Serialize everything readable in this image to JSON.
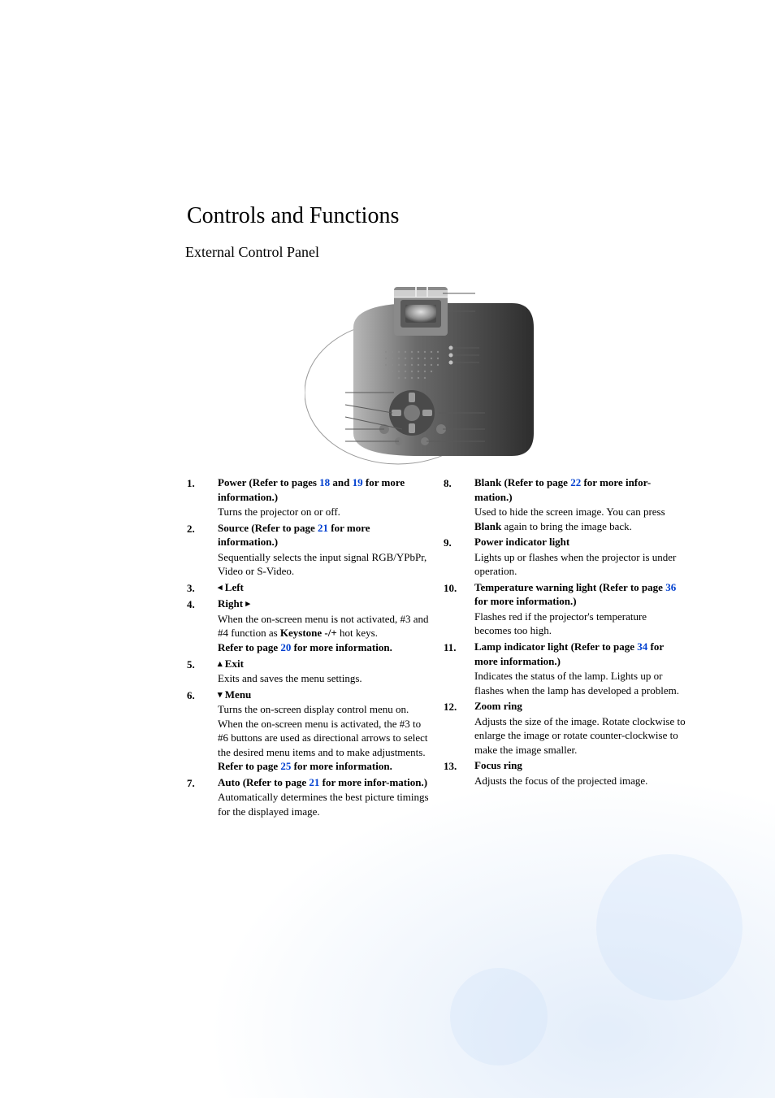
{
  "title": "Controls and Functions",
  "subtitle": "External Control Panel",
  "link_color": "#0040d0",
  "diagram": {
    "body_fill_start": "#b8b8b8",
    "body_fill_end": "#2d2d2d",
    "lens_fill": "#a8a8a8",
    "panel_dot": "#8a8a8a",
    "callout_stroke": "#5a5a5a",
    "outline_stroke": "#9a9a9a"
  },
  "left": [
    {
      "n": "1.",
      "head": [
        "Power (Refer to pages ",
        {
          "link": "18"
        },
        " and ",
        {
          "link": "19"
        },
        " for more information.)"
      ],
      "desc": [
        "Turns the projector on or off."
      ]
    },
    {
      "n": "2.",
      "head": [
        "Source (Refer to page ",
        {
          "link": "21"
        },
        " for more information.)"
      ],
      "desc": [
        "Sequentially selects the input signal RGB/YPbPr, Video or S-Video."
      ]
    },
    {
      "n": "3.",
      "head": [
        {
          "arrow": "◂"
        },
        " Left"
      ],
      "desc": []
    },
    {
      "n": "4.",
      "head": [
        "Right ",
        {
          "arrow": "▸"
        }
      ],
      "desc": [
        "When the on-screen menu is not activated, #3 and #4 function as ",
        {
          "bold": "Keystone -/+"
        },
        " hot keys.",
        {
          "br": true
        },
        {
          "bold": "Refer to page "
        },
        {
          "boldlink": "20"
        },
        {
          "bold": " for more information."
        }
      ]
    },
    {
      "n": "5.",
      "head": [
        {
          "arrow": "▴"
        },
        " Exit"
      ],
      "desc": [
        "Exits and saves the menu settings."
      ]
    },
    {
      "n": "6.",
      "head": [
        {
          "arrow": "▾"
        },
        " Menu"
      ],
      "desc": [
        "Turns the on-screen display control menu on.",
        {
          "br": true
        },
        "When the on-screen menu is activated, the #3 to #6 buttons are used as directional arrows to select the desired menu items and to make adjustments. ",
        {
          "bold": "Refer to page "
        },
        {
          "boldlink": "25"
        },
        {
          "bold": " for more information."
        }
      ]
    },
    {
      "n": "7.",
      "head": [
        "Auto (Refer to page ",
        {
          "link": "21"
        },
        " for more infor-mation.)"
      ],
      "desc": [
        "Automatically determines the best picture timings for the displayed image."
      ]
    }
  ],
  "right": [
    {
      "n": "8.",
      "head": [
        "Blank (Refer to page ",
        {
          "link": "22"
        },
        " for more infor-mation.)"
      ],
      "desc": [
        "Used to hide the screen image. You can press ",
        {
          "bold": "Blank"
        },
        " again to bring the image back."
      ]
    },
    {
      "n": "9.",
      "head": [
        "Power indicator light"
      ],
      "desc": [
        "Lights up or flashes when the projector is under operation."
      ]
    },
    {
      "n": "10.",
      "head": [
        "Temperature warning light (Refer to page ",
        {
          "link": "36"
        },
        " for more information.)"
      ],
      "desc": [
        "Flashes red if the projector's temperature becomes too high."
      ]
    },
    {
      "n": "11.",
      "head": [
        "Lamp indicator light (Refer to page ",
        {
          "link": "34"
        },
        " for more information.)"
      ],
      "desc": [
        "Indicates the status of the lamp. Lights up or flashes when the lamp has developed a problem."
      ]
    },
    {
      "n": "12.",
      "head": [
        "Zoom ring"
      ],
      "desc": [
        "Adjusts the size of the image. Rotate clockwise to enlarge the image or rotate counter-clockwise to make the image smaller."
      ]
    },
    {
      "n": "13.",
      "head": [
        "Focus ring"
      ],
      "desc": [
        "Adjusts the focus of the projected image."
      ]
    }
  ]
}
